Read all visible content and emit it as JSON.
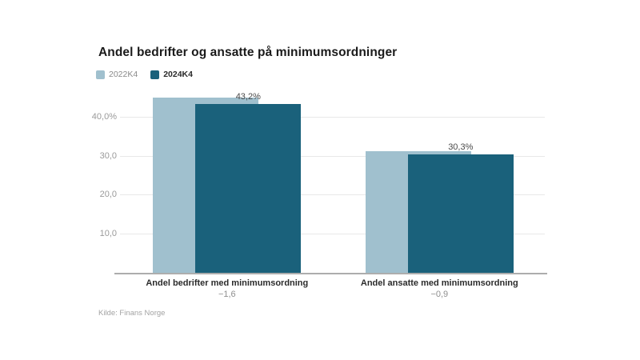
{
  "title": "Andel bedrifter og ansatte på minimumsordninger",
  "source": "Kilde: Finans Norge",
  "colors": {
    "series_2022": "#a0c0ce",
    "series_2024": "#1a617b",
    "background": "#ffffff"
  },
  "chart_data": {
    "type": "bar",
    "categories": [
      "Andel bedrifter med minimumsordning",
      "Andel ansatte med minimumsordning"
    ],
    "series": [
      {
        "name": "2022K4",
        "color": "#a0c0ce",
        "values": [
          44.8,
          31.2
        ]
      },
      {
        "name": "2024K4",
        "color": "#1a617b",
        "values": [
          43.2,
          30.3
        ]
      }
    ],
    "data_labels": [
      "43,2%",
      "30,3%"
    ],
    "change_labels": [
      "−1,6",
      "−0,9"
    ],
    "yticks": [
      {
        "value": 10,
        "label": "10,0"
      },
      {
        "value": 20,
        "label": "20,0"
      },
      {
        "value": 30,
        "label": "30,0"
      },
      {
        "value": 40,
        "label": "40,0%"
      }
    ],
    "ylim": [
      0,
      45.9
    ],
    "grid": true,
    "legend_position": "top-left"
  }
}
